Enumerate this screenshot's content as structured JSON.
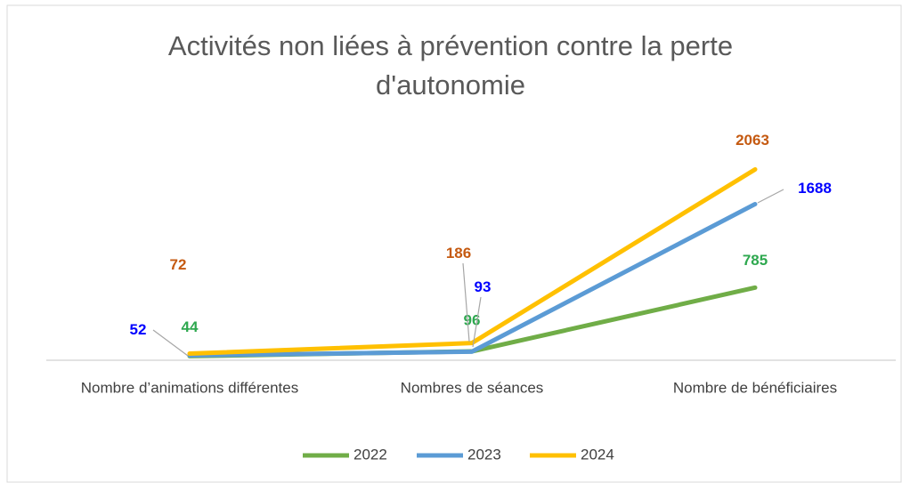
{
  "chart_data": {
    "type": "line",
    "title": "Activités non liées à prévention contre la perte d'autonomie",
    "categories": [
      "Nombre d’animations différentes",
      "Nombres de séances",
      "Nombre de bénéficiaires"
    ],
    "series": [
      {
        "name": "2022",
        "color": "#70ad47",
        "label_color": "#2ea84f",
        "values": [
          44,
          96,
          785
        ]
      },
      {
        "name": "2023",
        "color": "#5b9bd5",
        "label_color": "#0000ff",
        "values": [
          52,
          93,
          1688
        ]
      },
      {
        "name": "2024",
        "color": "#ffc000",
        "label_color": "#c55a11",
        "values": [
          72,
          186,
          2063
        ]
      }
    ],
    "ylim": [
      0,
      2500
    ],
    "legend": "bottom"
  }
}
